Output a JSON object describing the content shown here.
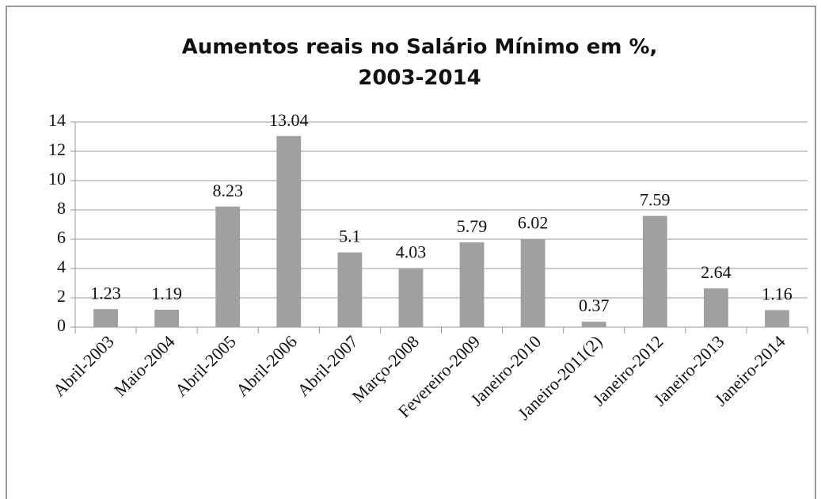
{
  "chart_data": {
    "type": "bar",
    "title": [
      "Aumentos reais no Salário Mínimo em %,",
      "2003-2014"
    ],
    "categories": [
      "Abril-2003",
      "Maio-2004",
      "Abril-2005",
      "Abril-2006",
      "Abril-2007",
      "Março-2008",
      "Fevereiro-2009",
      "Janeiro-2010",
      "Janeiro-2011(2)",
      "Janeiro-2012",
      "Janeiro-2013",
      "Janeiro-2014"
    ],
    "values": [
      1.23,
      1.19,
      8.23,
      13.04,
      5.1,
      4.03,
      5.79,
      6.02,
      0.37,
      7.59,
      2.64,
      1.16
    ],
    "color": "#a0a0a0",
    "ylim": [
      0,
      14
    ],
    "yticks": [
      0,
      2,
      4,
      6,
      8,
      10,
      12,
      14
    ],
    "grid": true
  }
}
